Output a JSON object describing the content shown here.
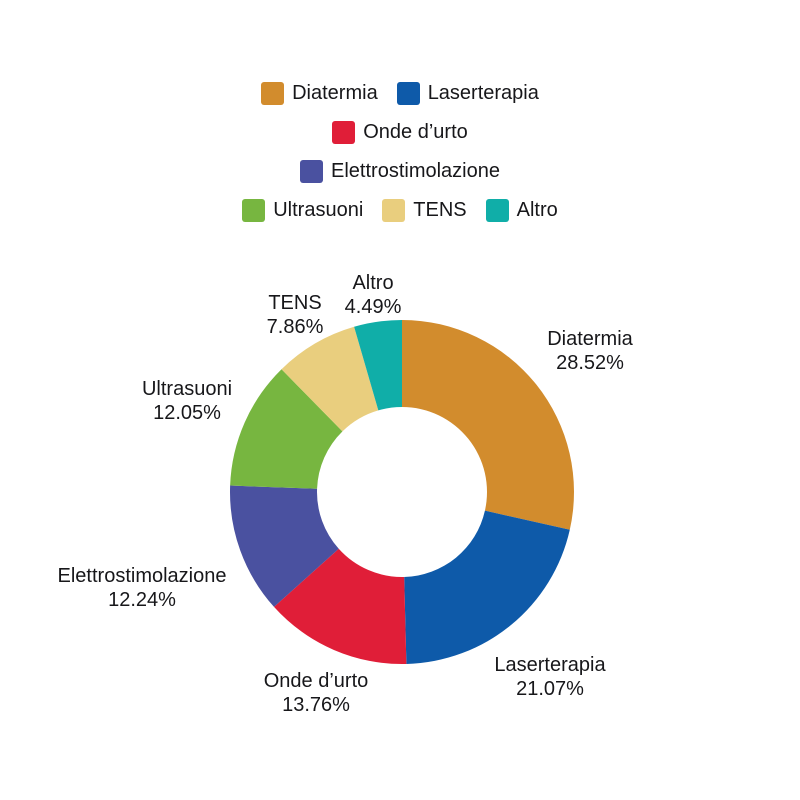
{
  "chart_data": {
    "type": "pie",
    "subtype": "donut",
    "title": "",
    "legend_position": "top",
    "direction": "clockwise",
    "start_angle_deg": 0,
    "inner_radius_ratio": 0.494,
    "background_color": "#FFFFFF",
    "text_color": "#17171A",
    "categories": [
      "Diatermia",
      "Laserterapia",
      "Onde d’urto",
      "Elettrostimolazione",
      "Ultrasuoni",
      "TENS",
      "Altro"
    ],
    "values": [
      28.52,
      21.07,
      13.76,
      12.24,
      12.05,
      7.86,
      4.49
    ],
    "value_labels": [
      "28.52%",
      "21.07%",
      "13.76%",
      "12.24%",
      "12.05%",
      "7.86%",
      "4.49%"
    ],
    "colors": [
      "#D28C2D",
      "#0E5AA9",
      "#E01E38",
      "#4A51A0",
      "#77B640",
      "#E9CE7E",
      "#10AEA8"
    ]
  }
}
